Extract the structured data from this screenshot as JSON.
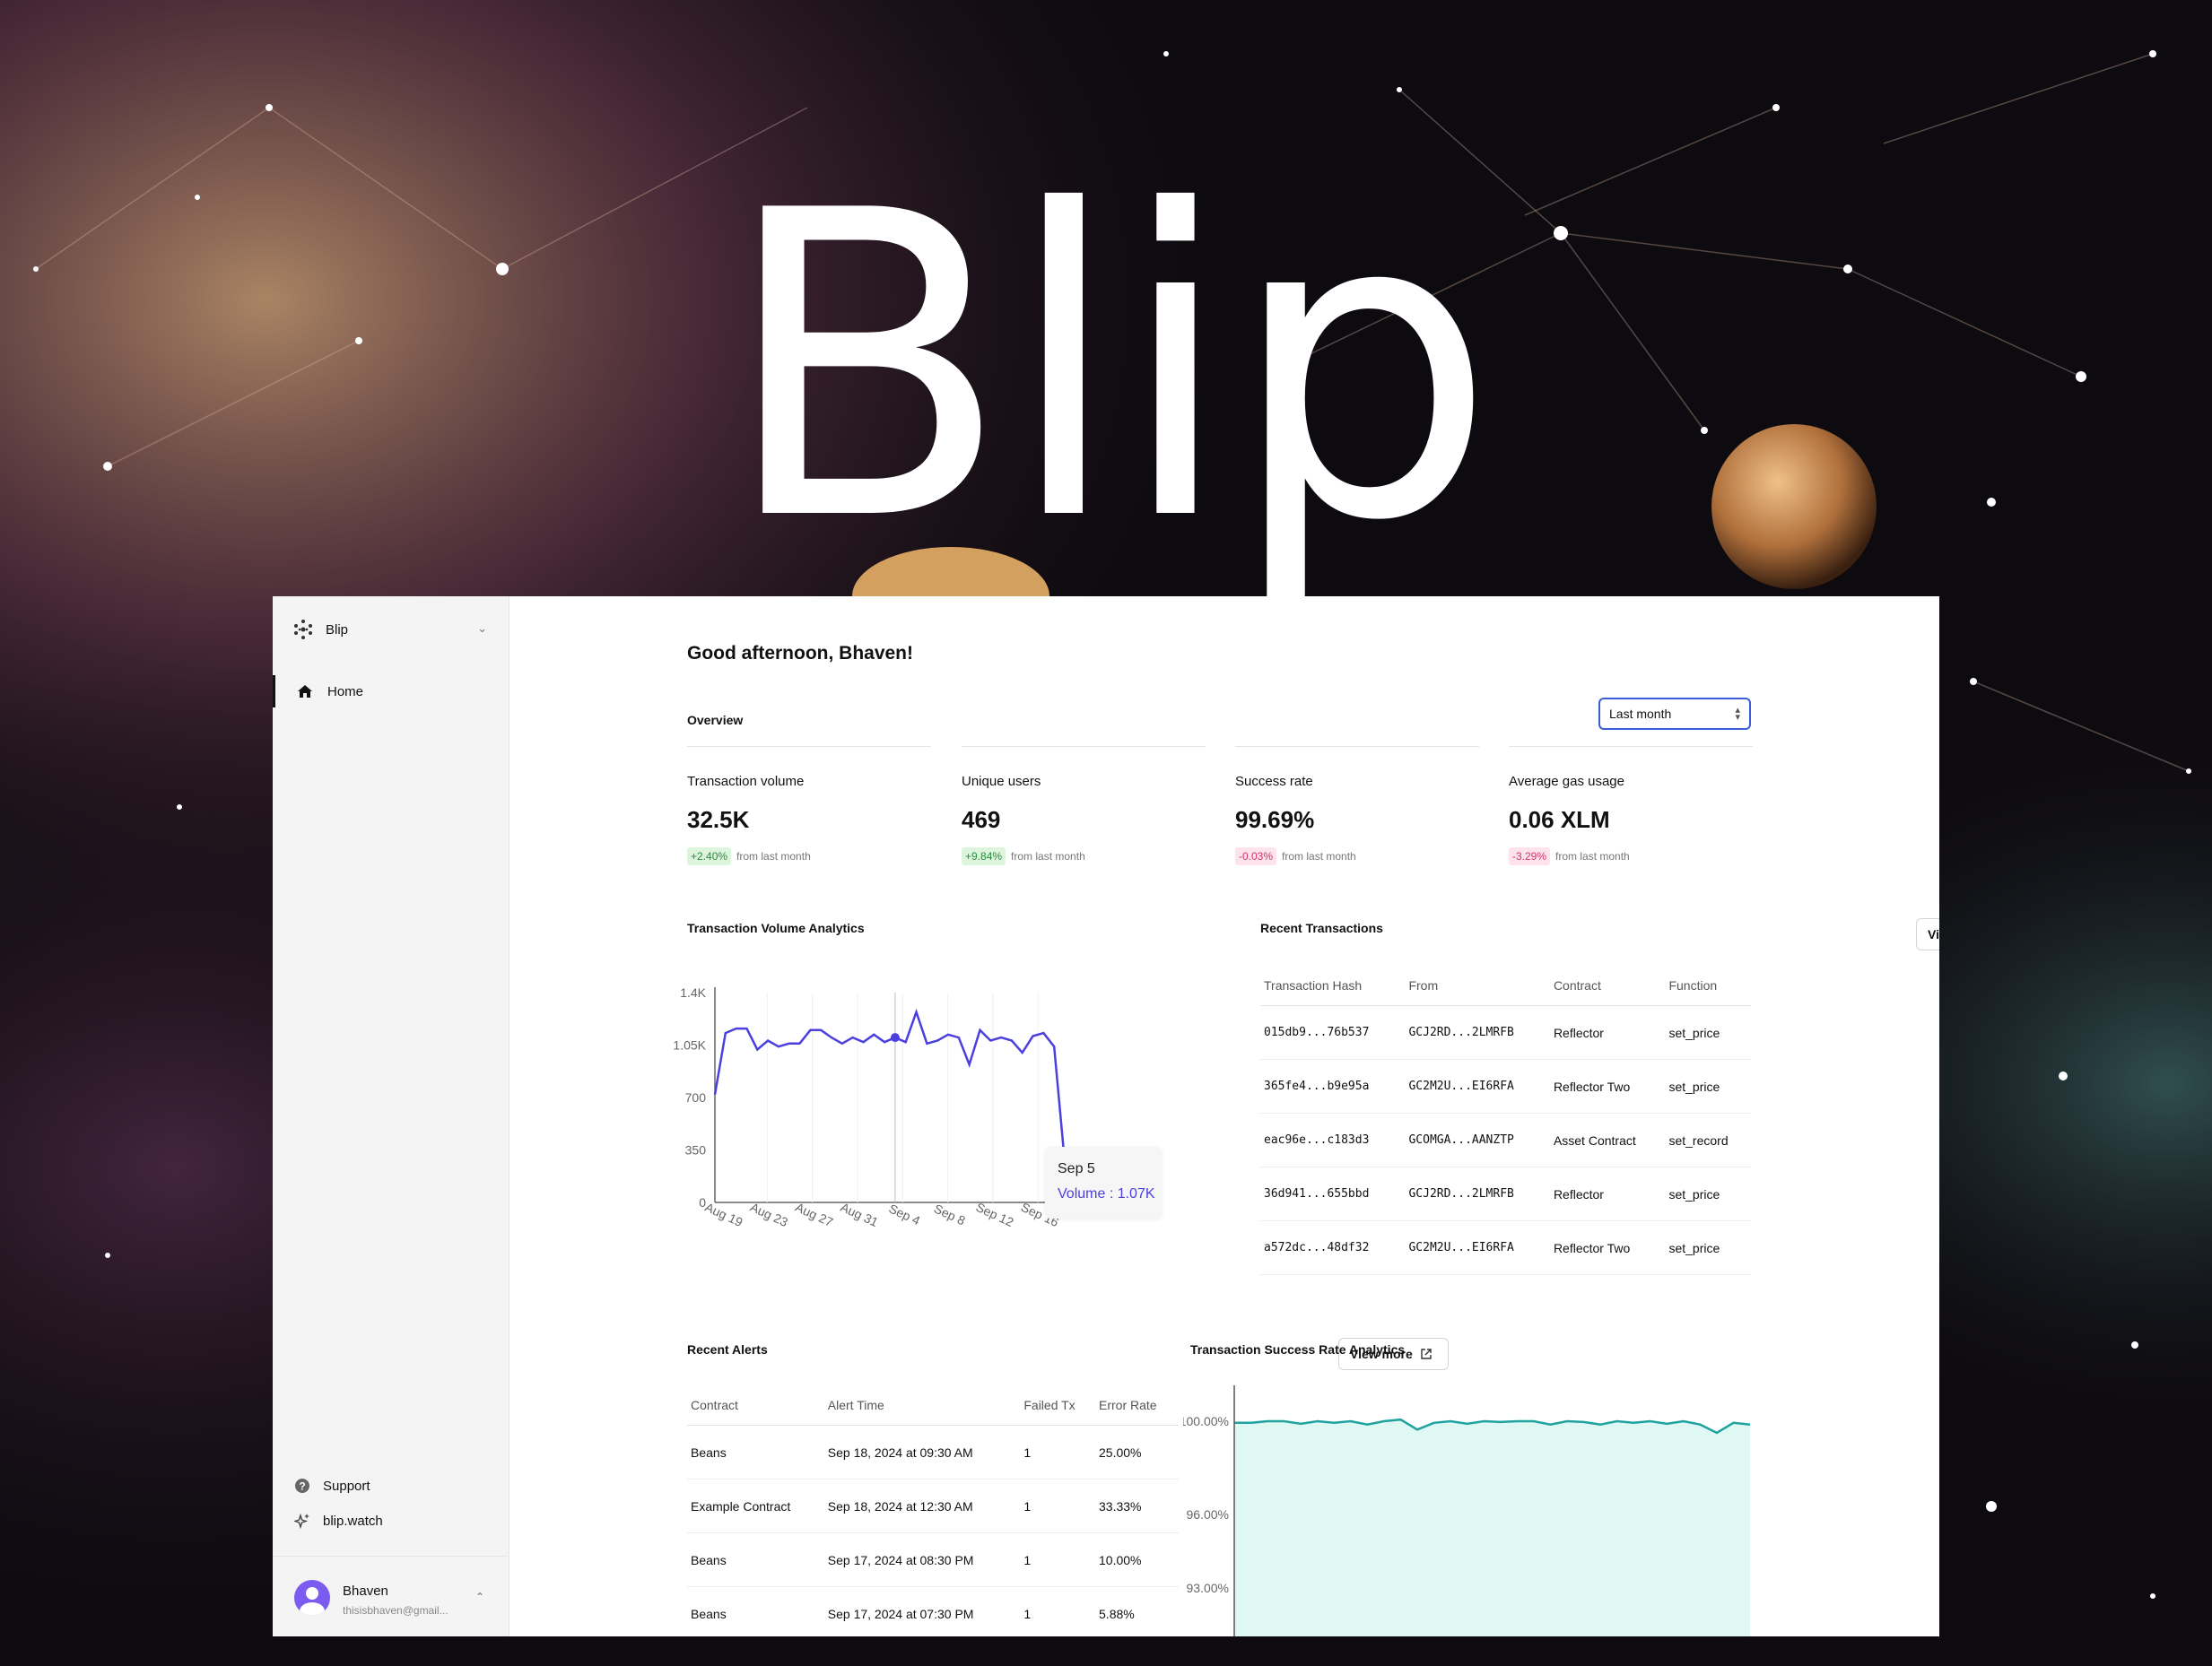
{
  "hero_title": "Blip",
  "sidebar": {
    "workspace": "Blip",
    "home_label": "Home",
    "support_label": "Support",
    "site_label": "blip.watch",
    "user_name": "Bhaven",
    "user_email": "thisisbhaven@gmail..."
  },
  "greeting": "Good afternoon, Bhaven!",
  "overview": {
    "title": "Overview",
    "range": "Last month",
    "stats": [
      {
        "label": "Transaction volume",
        "value": "32.5K",
        "change": "+2.40%",
        "note": "from last month"
      },
      {
        "label": "Unique users",
        "value": "469",
        "change": "+9.84%",
        "note": "from last month"
      },
      {
        "label": "Success rate",
        "value": "99.69%",
        "change": "-0.03%",
        "note": "from last month"
      },
      {
        "label": "Average gas usage",
        "value": "0.06 XLM",
        "change": "-3.29%",
        "note": "from last month"
      }
    ]
  },
  "volume_chart_title": "Transaction Volume Analytics",
  "tooltip": {
    "date": "Sep 5",
    "text": "Volume : 1.07K"
  },
  "recent_tx": {
    "title": "Recent Transactions",
    "view_more": "View more",
    "headers": [
      "Transaction Hash",
      "From",
      "Contract",
      "Function"
    ],
    "rows": [
      [
        "015db9...76b537",
        "GCJ2RD...2LMRFB",
        "Reflector",
        "set_price"
      ],
      [
        "365fe4...b9e95a",
        "GC2M2U...EI6RFA",
        "Reflector Two",
        "set_price"
      ],
      [
        "eac96e...c183d3",
        "GCOMGA...AANZTP",
        "Asset Contract",
        "set_record"
      ],
      [
        "36d941...655bbd",
        "GCJ2RD...2LMRFB",
        "Reflector",
        "set_price"
      ],
      [
        "a572dc...48df32",
        "GC2M2U...EI6RFA",
        "Reflector Two",
        "set_price"
      ]
    ]
  },
  "alerts": {
    "title": "Recent Alerts",
    "view_more": "View more",
    "headers": [
      "Contract",
      "Alert Time",
      "Failed Tx",
      "Error Rate"
    ],
    "rows": [
      [
        "Beans",
        "Sep 18, 2024 at 09:30 AM",
        "1",
        "25.00%"
      ],
      [
        "Example Contract",
        "Sep 18, 2024 at 12:30 AM",
        "1",
        "33.33%"
      ],
      [
        "Beans",
        "Sep 17, 2024 at 08:30 PM",
        "1",
        "10.00%"
      ],
      [
        "Beans",
        "Sep 17, 2024 at 07:30 PM",
        "1",
        "5.88%"
      ]
    ]
  },
  "success_chart_title": "Transaction Success Rate Analytics",
  "colors": {
    "volume_line": "#4c3fe0",
    "success_line": "#20a39e",
    "success_fill": "#e0f8f4",
    "select_border": "#3b5bdb"
  },
  "chart_data": [
    {
      "type": "line",
      "title": "Transaction Volume Analytics",
      "x_tick_labels": [
        "Aug 19",
        "Aug 23",
        "Aug 27",
        "Aug 31",
        "Sep 4",
        "Sep 8",
        "Sep 12",
        "Sep 16"
      ],
      "y_tick_labels": [
        "0",
        "350",
        "700",
        "1.05K",
        "1.4K"
      ],
      "ylim": [
        0,
        1400
      ],
      "series": [
        {
          "values": [
            720,
            1130,
            1160,
            1160,
            1020,
            1080,
            1040,
            1060,
            1060,
            1150,
            1150,
            1100,
            1060,
            1100,
            1070,
            1120,
            1070,
            1100,
            1070,
            1270,
            1060,
            1080,
            1120,
            1100,
            920,
            1150,
            1080,
            1100,
            1080,
            1000,
            1110,
            1130,
            1040,
            270
          ]
        }
      ],
      "highlight_index": 17,
      "grid": "vertical"
    },
    {
      "type": "area",
      "title": "Transaction Success Rate Analytics",
      "y_tick_labels": [
        "100.00%",
        "96.00%",
        "93.00%"
      ],
      "series": [
        {
          "values": [
            99.9,
            99.9,
            100.0,
            100.0,
            99.85,
            100.0,
            99.9,
            100.0,
            99.8,
            100.0,
            100.1,
            99.5,
            99.9,
            100.0,
            99.85,
            100.0,
            99.95,
            100.0,
            100.0,
            99.8,
            100.0,
            99.95,
            99.8,
            100.0,
            99.9,
            100.0,
            99.85,
            100.0,
            99.8,
            99.3,
            99.9,
            99.8
          ]
        }
      ]
    }
  ]
}
